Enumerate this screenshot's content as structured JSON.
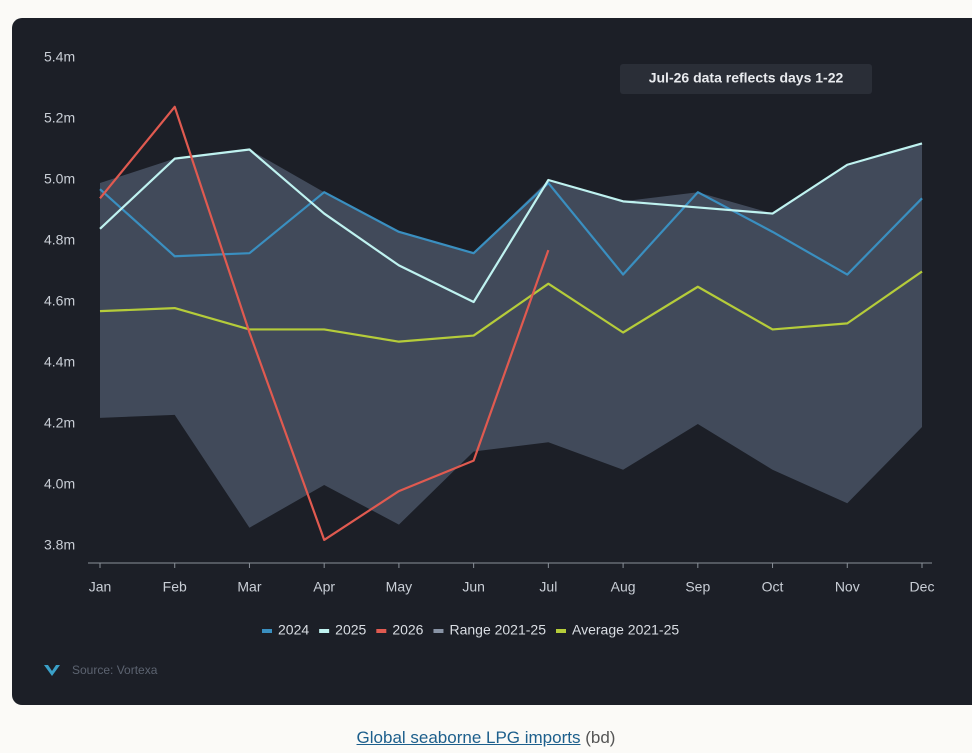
{
  "chart_data": {
    "type": "line",
    "annotation": "Jul-26 data reflects days 1-22",
    "source": "Source: Vortexa",
    "categories": [
      "Jan",
      "Feb",
      "Mar",
      "Apr",
      "May",
      "Jun",
      "Jul",
      "Aug",
      "Sep",
      "Oct",
      "Nov",
      "Dec"
    ],
    "ylim": [
      3.8,
      5.4
    ],
    "yticks": [
      {
        "value": 3.8,
        "label": "3.8m"
      },
      {
        "value": 4.0,
        "label": "4.0m"
      },
      {
        "value": 4.2,
        "label": "4.2m"
      },
      {
        "value": 4.4,
        "label": "4.4m"
      },
      {
        "value": 4.6,
        "label": "4.6m"
      },
      {
        "value": 4.8,
        "label": "4.8m"
      },
      {
        "value": 5.0,
        "label": "5.0m"
      },
      {
        "value": 5.2,
        "label": "5.2m"
      },
      {
        "value": 5.4,
        "label": "5.4m"
      }
    ],
    "range": {
      "name": "Range 2021-25",
      "color": "#4e5a6c",
      "high": [
        4.99,
        5.07,
        5.1,
        4.96,
        4.83,
        4.76,
        5.0,
        4.93,
        4.96,
        4.89,
        5.05,
        5.12
      ],
      "low": [
        4.22,
        4.23,
        3.86,
        4.0,
        3.87,
        4.11,
        4.14,
        4.05,
        4.2,
        4.05,
        3.94,
        4.19
      ]
    },
    "series": [
      {
        "name": "2024",
        "color": "#3a8fc0",
        "values": [
          4.97,
          4.75,
          4.76,
          4.96,
          4.83,
          4.76,
          4.99,
          4.69,
          4.96,
          4.83,
          4.69,
          4.94
        ]
      },
      {
        "name": "2025",
        "color": "#bff2f0",
        "values": [
          4.84,
          5.07,
          5.1,
          4.89,
          4.72,
          4.6,
          5.0,
          4.93,
          4.91,
          4.89,
          5.05,
          5.12
        ]
      },
      {
        "name": "2026",
        "color": "#e05a50",
        "values": [
          4.94,
          5.24,
          4.5,
          3.82,
          3.98,
          4.08,
          4.77,
          null,
          null,
          null,
          null,
          null
        ]
      },
      {
        "name": "Average 2021-25",
        "color": "#b5cc3a",
        "values": [
          4.57,
          4.58,
          4.51,
          4.51,
          4.47,
          4.49,
          4.66,
          4.5,
          4.65,
          4.51,
          4.53,
          4.7
        ]
      }
    ]
  },
  "caption": {
    "link": "Global seaborne LPG imports",
    "unit": "(bd)"
  }
}
